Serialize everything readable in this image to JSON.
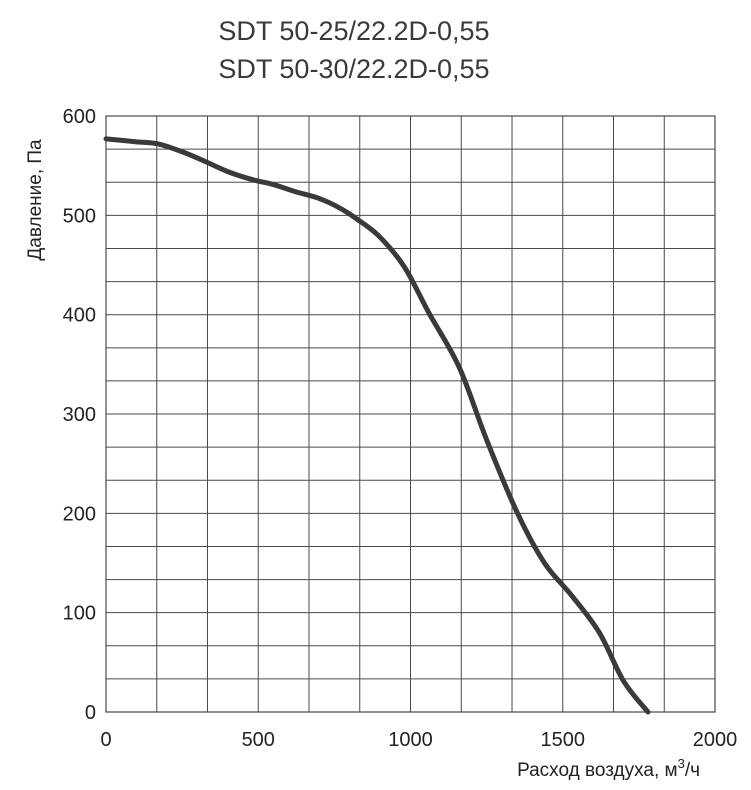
{
  "chart_data": {
    "type": "line",
    "title_lines": [
      "SDT 50-25/22.2D-0,55",
      "SDT 50-30/22.2D-0,55"
    ],
    "xlabel": "Расход воздуха, м",
    "xlabel_sup": "3",
    "xlabel_suffix": "/ч",
    "ylabel": "Давление, Па",
    "xlim": [
      0,
      2000
    ],
    "ylim": [
      0,
      600
    ],
    "grid": true,
    "x_ticks": [
      {
        "value": 0,
        "label": "0"
      },
      {
        "value": 500,
        "label": "500"
      },
      {
        "value": 1000,
        "label": "1000"
      },
      {
        "value": 1500,
        "label": "1500"
      },
      {
        "value": 2000,
        "label": "2000"
      }
    ],
    "y_ticks": [
      {
        "value": 0,
        "label": "0"
      },
      {
        "value": 100,
        "label": "100"
      },
      {
        "value": 200,
        "label": "200"
      },
      {
        "value": 300,
        "label": "300"
      },
      {
        "value": 400,
        "label": "400"
      },
      {
        "value": 500,
        "label": "500"
      },
      {
        "value": 600,
        "label": "600"
      }
    ],
    "x_grid_step": 166.67,
    "y_grid_step": 33.33,
    "series": [
      {
        "color": "#3a3a3a",
        "x": [
          0,
          100,
          170,
          250,
          320,
          400,
          480,
          550,
          620,
          700,
          770,
          830,
          900,
          980,
          1060,
          1160,
          1250,
          1350,
          1440,
          1530,
          1620,
          1700,
          1780
        ],
        "y": [
          577,
          574,
          572,
          564,
          555,
          544,
          536,
          531,
          524,
          517,
          507,
          495,
          478,
          448,
          402,
          347,
          274,
          201,
          150,
          117,
          80,
          31,
          0
        ]
      }
    ]
  }
}
